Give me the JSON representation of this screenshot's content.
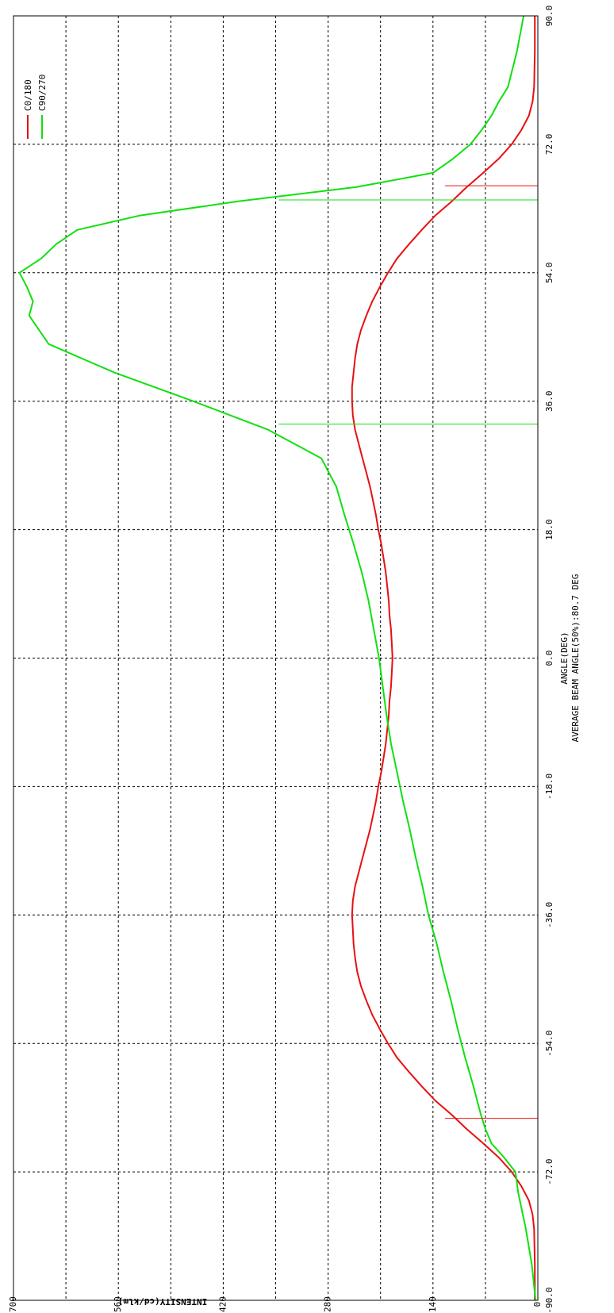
{
  "chart_data": {
    "type": "line",
    "xlabel": "ANGLE(DEG)",
    "subtitle": "AVERAGE BEAM ANGLE(50%):80.7 DEG",
    "ylabel": "INTENSITY(cd/klm)",
    "xlim": [
      -90,
      90
    ],
    "ylim": [
      0,
      700
    ],
    "x_ticks": [
      "-90.0",
      "-72.0",
      "-54.0",
      "-36.0",
      "-18.0",
      "0.0",
      "18.0",
      "36.0",
      "54.0",
      "72.0",
      "90.0"
    ],
    "y_ticks": [
      "0",
      "140",
      "280",
      "420",
      "560",
      "700"
    ],
    "x_tick_values": [
      -90,
      -72,
      -54,
      -36,
      -18,
      0,
      18,
      36,
      54,
      72,
      90
    ],
    "y_tick_values": [
      0,
      140,
      280,
      420,
      560,
      700
    ],
    "x_grid_values": [
      -90,
      -72,
      -54,
      -36,
      -18,
      0,
      18,
      36,
      54,
      72,
      90
    ],
    "y_grid_values": [
      0,
      70,
      140,
      210,
      280,
      350,
      420,
      490,
      560,
      630,
      700
    ],
    "grid": true,
    "legend_position": "top-left",
    "colors": {
      "c0_180": "#e81010",
      "c90_270": "#10e010"
    },
    "series": [
      {
        "name": "C0/180",
        "color": "#e81010",
        "x": [
          -90,
          -85,
          -80,
          -78,
          -76,
          -74,
          -72,
          -70,
          -68,
          -66,
          -64,
          -62,
          -60,
          -58,
          -56,
          -54,
          -52,
          -50,
          -48,
          -46,
          -44,
          -42,
          -40,
          -38,
          -36,
          -34,
          -32,
          -30,
          -28,
          -26,
          -24,
          -22,
          -20,
          -18,
          -16,
          -14,
          -12,
          -10,
          -8,
          -6,
          -4,
          -2,
          0,
          2,
          4,
          6,
          8,
          10,
          12,
          14,
          16,
          18,
          20,
          22,
          24,
          26,
          28,
          30,
          32,
          34,
          36,
          38,
          40,
          42,
          44,
          46,
          48,
          50,
          52,
          54,
          56,
          58,
          60,
          62,
          64,
          66,
          68,
          70,
          72,
          74,
          76,
          78,
          80,
          85,
          90
        ],
        "values": [
          4,
          4,
          5,
          7,
          12,
          22,
          35,
          52,
          73,
          95,
          115,
          137,
          155,
          172,
          188,
          200,
          211,
          221,
          229,
          236,
          241,
          244,
          246,
          247,
          248,
          247,
          244,
          239,
          234,
          229,
          224,
          220,
          216,
          213,
          209,
          206,
          203,
          201,
          199,
          198,
          196,
          195,
          194,
          195,
          196,
          198,
          199,
          201,
          203,
          206,
          209,
          213,
          216,
          220,
          224,
          229,
          234,
          239,
          244,
          247,
          248,
          248,
          246,
          244,
          241,
          236,
          229,
          221,
          211,
          200,
          188,
          172,
          155,
          137,
          115,
          95,
          73,
          52,
          35,
          22,
          12,
          7,
          5,
          4,
          4
        ]
      },
      {
        "name": "C90/270",
        "color": "#10e010",
        "x": [
          -90,
          -85,
          -80,
          -75,
          -72,
          -70,
          -68,
          -66,
          -64,
          -60,
          -56,
          -52,
          -48,
          -44,
          -40,
          -36,
          -32,
          -28,
          -24,
          -20,
          -16,
          -12,
          -8,
          -4,
          0,
          4,
          8,
          12,
          16,
          20,
          24,
          28,
          32,
          36,
          40,
          44,
          48,
          50,
          52,
          54,
          56,
          58,
          60,
          62,
          64,
          66,
          68,
          70,
          72,
          74,
          76,
          78,
          80,
          85,
          90
        ],
        "values": [
          3,
          8,
          16,
          26,
          30,
          45,
          62,
          70,
          76,
          86,
          97,
          107,
          116,
          126,
          135,
          146,
          154,
          163,
          171,
          180,
          188,
          196,
          202,
          207,
          212,
          219,
          226,
          235,
          246,
          258,
          269,
          289,
          360,
          460,
          565,
          653,
          679,
          674,
          682,
          692,
          663,
          643,
          615,
          532,
          401,
          243,
          140,
          113,
          90,
          75,
          62,
          52,
          40,
          28,
          19
        ]
      }
    ],
    "beam_markers": [
      {
        "series": "C0/180",
        "x": -64.5,
        "y": 124
      },
      {
        "series": "C0/180",
        "x": 66.2,
        "y": 124
      },
      {
        "series": "C90/270",
        "x": 32.8,
        "y": 346
      },
      {
        "series": "C90/270",
        "x": 64.2,
        "y": 346
      }
    ]
  }
}
